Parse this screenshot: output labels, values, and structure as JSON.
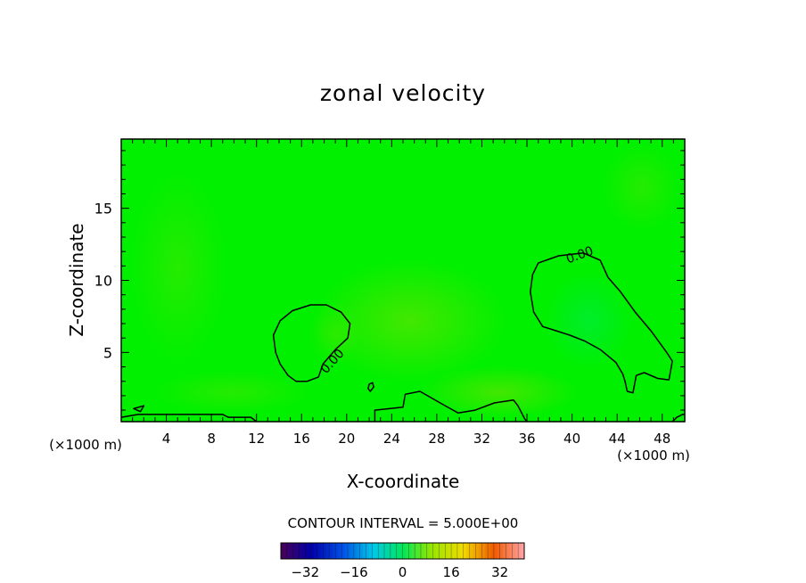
{
  "chart_data": {
    "type": "contour",
    "title": "zonal velocity",
    "xlabel": "X-coordinate",
    "ylabel": "Z-coordinate",
    "x_unit_left": "(×1000 m)",
    "x_unit_right": "(×1000 m)",
    "xlim": [
      0,
      50
    ],
    "ylim": [
      0.2,
      19.8
    ],
    "x_ticks": [
      4,
      8,
      12,
      16,
      20,
      24,
      28,
      32,
      36,
      40,
      44,
      48
    ],
    "y_ticks": [
      5,
      10,
      15
    ],
    "contour_label": "0.00",
    "contour_interval_text": "CONTOUR INTERVAL = 5.000E+00",
    "field_color": "#00f000",
    "contour_color": "#000000",
    "colorbar": {
      "min": -40,
      "max": 40,
      "ticks": [
        -32,
        -16,
        0,
        16,
        32
      ],
      "tick_labels": [
        "−32",
        "−16",
        "0",
        "16",
        "32"
      ]
    },
    "zero_contours": [
      {
        "name": "left-eddy",
        "points": [
          [
            13.7,
            5.0
          ],
          [
            13.5,
            6.2
          ],
          [
            14.1,
            7.2
          ],
          [
            15.2,
            7.9
          ],
          [
            16.8,
            8.3
          ],
          [
            18.2,
            8.3
          ],
          [
            19.5,
            7.8
          ],
          [
            20.3,
            7.0
          ],
          [
            20.1,
            6.0
          ],
          [
            19.0,
            5.2
          ],
          [
            17.9,
            4.2
          ],
          [
            17.5,
            3.3
          ],
          [
            16.5,
            3.0
          ],
          [
            15.5,
            3.0
          ],
          [
            14.8,
            3.4
          ],
          [
            14.1,
            4.2
          ]
        ]
      },
      {
        "name": "right-eddy",
        "points": [
          [
            37.0,
            11.2
          ],
          [
            38.8,
            11.7
          ],
          [
            41.0,
            11.9
          ],
          [
            42.5,
            11.4
          ],
          [
            43.2,
            10.2
          ],
          [
            44.3,
            9.2
          ],
          [
            45.6,
            7.8
          ],
          [
            47.0,
            6.5
          ],
          [
            48.4,
            5.0
          ],
          [
            48.9,
            4.4
          ],
          [
            48.6,
            3.1
          ],
          [
            47.6,
            3.2
          ],
          [
            46.4,
            3.6
          ],
          [
            45.7,
            3.4
          ],
          [
            45.4,
            2.2
          ],
          [
            44.9,
            2.3
          ],
          [
            44.7,
            3.0
          ],
          [
            44.5,
            3.5
          ],
          [
            43.9,
            4.3
          ],
          [
            42.5,
            5.2
          ],
          [
            41.1,
            5.8
          ],
          [
            39.8,
            6.2
          ],
          [
            38.6,
            6.5
          ],
          [
            37.4,
            6.8
          ],
          [
            36.6,
            7.8
          ],
          [
            36.3,
            9.2
          ],
          [
            36.5,
            10.4
          ]
        ]
      },
      {
        "name": "small-loop",
        "points": [
          [
            22.1,
            2.3
          ],
          [
            22.4,
            2.6
          ],
          [
            22.3,
            2.9
          ],
          [
            22.0,
            2.8
          ],
          [
            21.9,
            2.5
          ]
        ]
      },
      {
        "name": "bottom-wave",
        "points": [
          [
            0.0,
            0.5
          ],
          [
            1.5,
            0.7
          ],
          [
            3.0,
            0.7
          ],
          [
            5.0,
            0.7
          ],
          [
            7.0,
            0.7
          ],
          [
            9.0,
            0.7
          ],
          [
            9.5,
            0.5
          ],
          [
            11.5,
            0.5
          ],
          [
            12.0,
            0.2
          ]
        ]
      },
      {
        "name": "bottom-bump",
        "points": [
          [
            22.5,
            0.2
          ],
          [
            22.5,
            1.0
          ],
          [
            25.0,
            1.2
          ],
          [
            25.2,
            2.1
          ],
          [
            26.5,
            2.3
          ],
          [
            28.3,
            1.5
          ],
          [
            29.9,
            0.8
          ],
          [
            31.4,
            1.0
          ],
          [
            33.1,
            1.5
          ],
          [
            34.8,
            1.7
          ],
          [
            35.2,
            1.3
          ],
          [
            35.8,
            0.4
          ],
          [
            36.0,
            0.2
          ]
        ]
      },
      {
        "name": "corner-tick",
        "points": [
          [
            1.1,
            1.1
          ],
          [
            2.0,
            1.3
          ],
          [
            1.7,
            0.9
          ],
          [
            1.1,
            1.1
          ]
        ]
      },
      {
        "name": "right-corner",
        "points": [
          [
            48.9,
            0.2
          ],
          [
            49.3,
            0.5
          ],
          [
            49.8,
            0.7
          ],
          [
            50.0,
            0.7
          ]
        ]
      }
    ],
    "zero_contour_labels": [
      {
        "x": 19.0,
        "y": 4.2,
        "angle": -48
      },
      {
        "x": 40.8,
        "y": 11.5,
        "angle": -20
      }
    ]
  }
}
